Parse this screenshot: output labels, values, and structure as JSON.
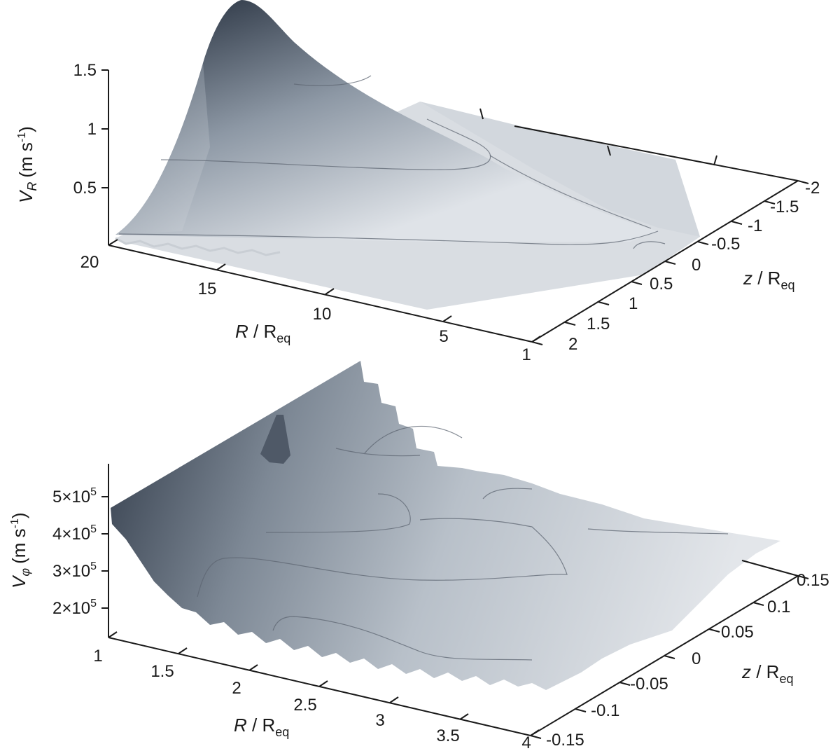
{
  "chart_data": [
    {
      "type": "surface",
      "zlabel": "V_R (m s^-1)",
      "zlabel_parts": {
        "v": "V",
        "sub": "R",
        "unit": "(m s",
        "exp": "-1",
        "close": ")"
      },
      "xlabel": "R / R_eq",
      "xlabel_parts": {
        "r": "R",
        "slash": " / R",
        "sub": "eq"
      },
      "ylabel": "z / R_eq",
      "ylabel_parts": {
        "z": "z",
        "slash": " / R",
        "sub": "eq"
      },
      "x_ticks": [
        "20",
        "15",
        "10",
        "5",
        "1"
      ],
      "y_ticks": [
        "2",
        "1.5",
        "1",
        "0.5",
        "0",
        "-0.5",
        "-1",
        "-1.5",
        "-2"
      ],
      "z_ticks": [
        "0.5",
        "1",
        "1.5"
      ],
      "x_range": [
        1,
        20
      ],
      "y_range": [
        -2,
        2
      ],
      "z_range": [
        0,
        1.5
      ],
      "peak": {
        "R": 20,
        "z": -1,
        "V_R": 1.6
      }
    },
    {
      "type": "surface",
      "zlabel": "V_phi (m s^-1)",
      "zlabel_parts": {
        "v": "V",
        "sub": "φ",
        "unit": "(m s",
        "exp": "-1",
        "close": ")"
      },
      "xlabel": "R / R_eq",
      "xlabel_parts": {
        "r": "R",
        "slash": " / R",
        "sub": "eq"
      },
      "ylabel": "z / R_eq",
      "ylabel_parts": {
        "z": "z",
        "slash": " / R",
        "sub": "eq"
      },
      "x_ticks": [
        "1",
        "1.5",
        "2",
        "2.5",
        "3",
        "3.5",
        "4"
      ],
      "y_ticks": [
        "-0.15",
        "-0.1",
        "-0.05",
        "0",
        "0.05",
        "0.1",
        "0.15"
      ],
      "z_ticks": [
        {
          "m": "2×10",
          "e": "5"
        },
        {
          "m": "3×10",
          "e": "5"
        },
        {
          "m": "4×10",
          "e": "5"
        },
        {
          "m": "5×10",
          "e": "5"
        }
      ],
      "x_range": [
        1,
        4
      ],
      "y_range": [
        -0.15,
        0.15
      ],
      "z_range": [
        150000,
        550000
      ]
    }
  ]
}
